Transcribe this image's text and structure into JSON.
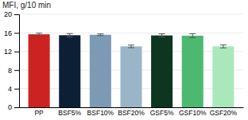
{
  "chart_data": {
    "type": "bar",
    "ylabel": "MFI, g/10 min",
    "categories": [
      "PP",
      "BSF5%",
      "BSF10%",
      "BSF20%",
      "GSF5%",
      "GSF10%",
      "GSF20%"
    ],
    "values": [
      15.7,
      15.5,
      15.6,
      13.1,
      15.45,
      15.4,
      13.1
    ],
    "errors": [
      0.25,
      0.35,
      0.18,
      0.28,
      0.35,
      0.42,
      0.32
    ],
    "colors": [
      "#cc2222",
      "#0d1f35",
      "#7d9ab5",
      "#9ab5c8",
      "#0d3520",
      "#4db870",
      "#aae8bc"
    ],
    "ylim": [
      0,
      20
    ],
    "yticks": [
      0,
      4,
      8,
      12,
      16,
      20
    ],
    "grid": true
  }
}
